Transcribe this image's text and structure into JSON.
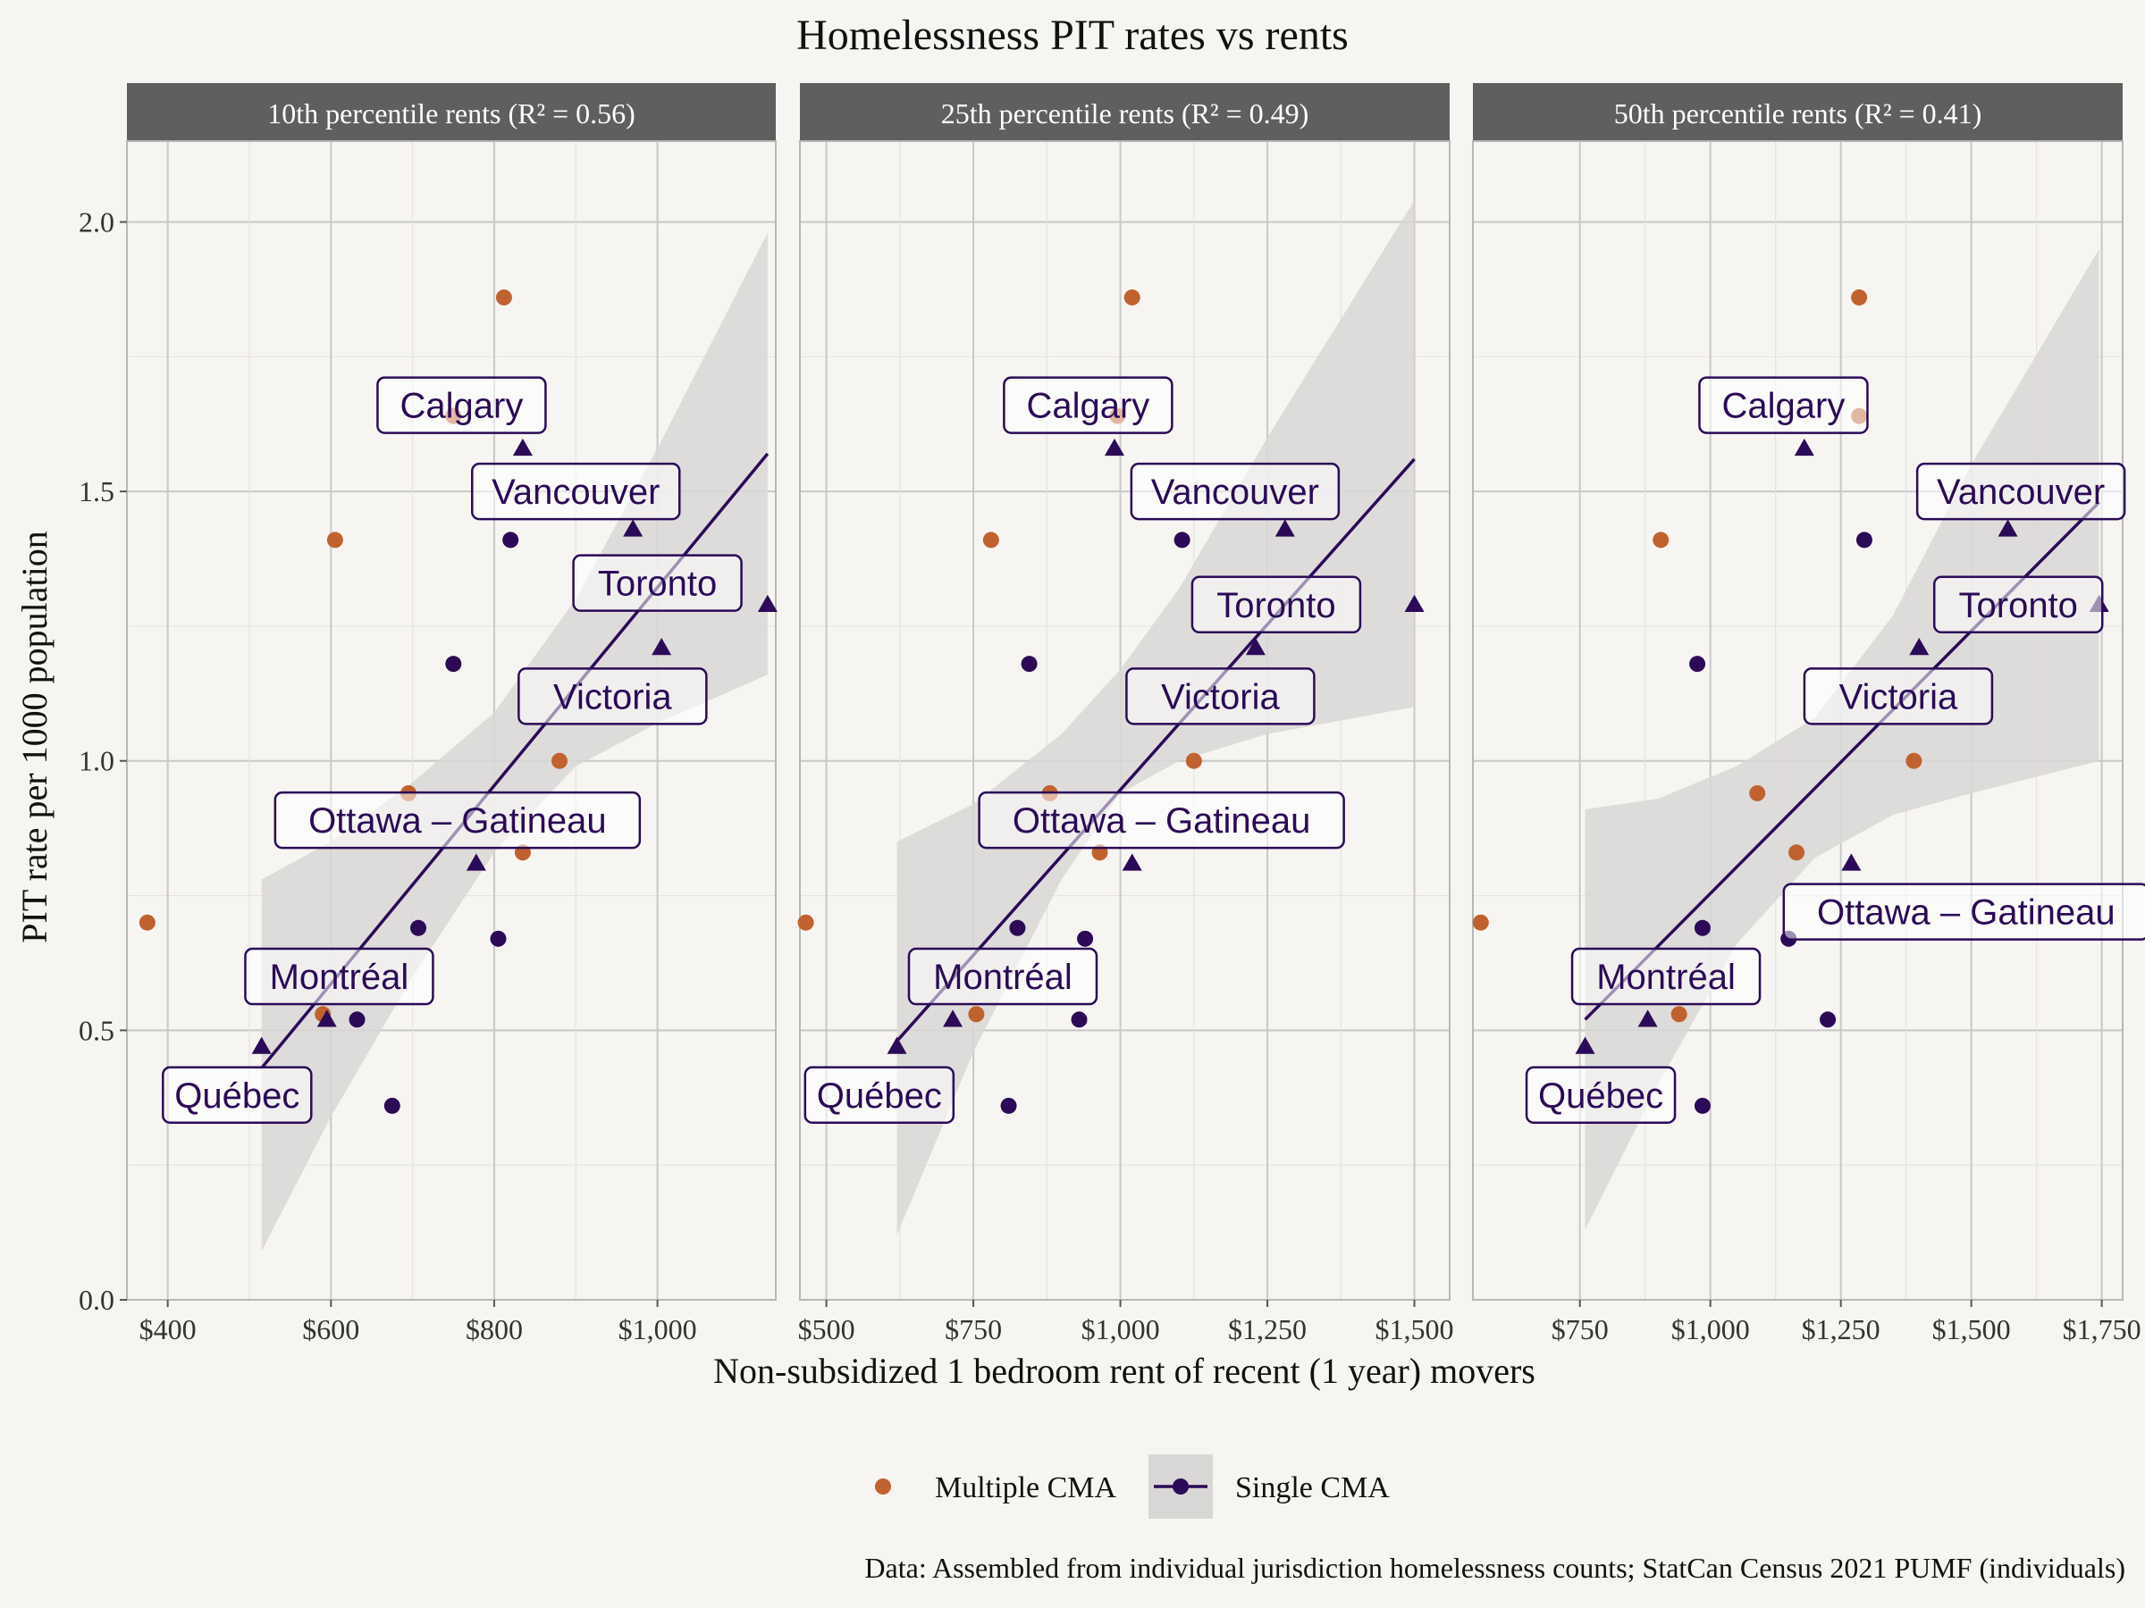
{
  "chart_data": {
    "type": "scatter",
    "title": "Homelessness PIT rates vs rents",
    "xlabel": "Non-subsidized 1 bedroom rent of recent (1 year) movers",
    "ylabel": "PIT rate per 1000 population",
    "caption": "Data: Assembled from individual jurisdiction homelessness counts; StatCan Census 2021 PUMF (individuals)",
    "colors": {
      "multiple": "#c0622f",
      "single": "#2b0a57",
      "band": "#d9d7d6",
      "strip": "#5f5f5f"
    },
    "legend": {
      "placement": "bottom",
      "items": [
        {
          "key": "multiple",
          "label": "Multiple CMA"
        },
        {
          "key": "single",
          "label": "Single CMA"
        }
      ]
    },
    "ylim": [
      0,
      2.15
    ],
    "yticks": [
      0.0,
      0.5,
      1.0,
      1.5,
      2.0
    ],
    "ytick_labels": [
      "0.0",
      "0.5",
      "1.0",
      "1.5",
      "2.0"
    ],
    "panels": [
      {
        "strip": "10th percentile rents (R² = 0.56)",
        "xlim": [
          350,
          1145
        ],
        "xticks": [
          400,
          600,
          800,
          1000
        ],
        "xtick_labels": [
          "$400",
          "$600",
          "$800",
          "$1,000"
        ],
        "fit": {
          "x": [
            515,
            1135
          ],
          "y": [
            0.43,
            1.57
          ]
        },
        "band_upper": [
          [
            515,
            0.78
          ],
          [
            600,
            0.85
          ],
          [
            700,
            0.96
          ],
          [
            800,
            1.09
          ],
          [
            900,
            1.3
          ],
          [
            1000,
            1.58
          ],
          [
            1135,
            1.98
          ]
        ],
        "band_lower": [
          [
            515,
            0.09
          ],
          [
            600,
            0.34
          ],
          [
            700,
            0.6
          ],
          [
            800,
            0.83
          ],
          [
            900,
            0.99
          ],
          [
            1000,
            1.07
          ],
          [
            1135,
            1.16
          ]
        ],
        "points": [
          {
            "x": 375,
            "y": 0.7,
            "g": "multiple"
          },
          {
            "x": 605,
            "y": 1.41,
            "g": "multiple"
          },
          {
            "x": 590,
            "y": 0.53,
            "g": "multiple"
          },
          {
            "x": 695,
            "y": 0.94,
            "g": "multiple"
          },
          {
            "x": 750,
            "y": 1.64,
            "g": "multiple"
          },
          {
            "x": 812,
            "y": 1.86,
            "g": "multiple"
          },
          {
            "x": 835,
            "y": 0.83,
            "g": "multiple"
          },
          {
            "x": 880,
            "y": 1.0,
            "g": "multiple"
          },
          {
            "x": 750,
            "y": 1.18,
            "g": "single-dot"
          },
          {
            "x": 820,
            "y": 1.41,
            "g": "single-dot"
          },
          {
            "x": 707,
            "y": 0.69,
            "g": "single-dot"
          },
          {
            "x": 632,
            "y": 0.52,
            "g": "single-dot"
          },
          {
            "x": 675,
            "y": 0.36,
            "g": "single-dot"
          },
          {
            "x": 805,
            "y": 0.67,
            "g": "single-dot"
          },
          {
            "x": 515,
            "y": 0.47,
            "g": "single-tri"
          },
          {
            "x": 595,
            "y": 0.52,
            "g": "single-tri"
          },
          {
            "x": 778,
            "y": 0.81,
            "g": "single-tri"
          },
          {
            "x": 835,
            "y": 1.58,
            "g": "single-tri"
          },
          {
            "x": 970,
            "y": 1.43,
            "g": "single-tri"
          },
          {
            "x": 1005,
            "y": 1.21,
            "g": "single-tri"
          },
          {
            "x": 1135,
            "y": 1.29,
            "g": "single-tri"
          }
        ],
        "labels": [
          {
            "text": "Calgary",
            "x": 760,
            "y": 1.66
          },
          {
            "text": "Vancouver",
            "x": 900,
            "y": 1.5
          },
          {
            "text": "Toronto",
            "x": 1000,
            "y": 1.33
          },
          {
            "text": "Victoria",
            "x": 945,
            "y": 1.12
          },
          {
            "text": "Ottawa – Gatineau",
            "x": 755,
            "y": 0.89
          },
          {
            "text": "Montréal",
            "x": 610,
            "y": 0.6
          },
          {
            "text": "Québec",
            "x": 485,
            "y": 0.38
          }
        ]
      },
      {
        "strip": "25th percentile rents (R² = 0.49)",
        "xlim": [
          455,
          1560
        ],
        "xticks": [
          500,
          750,
          1000,
          1250,
          1500
        ],
        "xtick_labels": [
          "$500",
          "$750",
          "$1,000",
          "$1,250",
          "$1,500"
        ],
        "fit": {
          "x": [
            620,
            1500
          ],
          "y": [
            0.48,
            1.56
          ]
        },
        "band_upper": [
          [
            620,
            0.85
          ],
          [
            750,
            0.92
          ],
          [
            900,
            1.05
          ],
          [
            1000,
            1.17
          ],
          [
            1100,
            1.32
          ],
          [
            1250,
            1.6
          ],
          [
            1500,
            2.04
          ]
        ],
        "band_lower": [
          [
            620,
            0.12
          ],
          [
            750,
            0.46
          ],
          [
            900,
            0.78
          ],
          [
            1000,
            0.94
          ],
          [
            1100,
            1.0
          ],
          [
            1250,
            1.05
          ],
          [
            1500,
            1.1
          ]
        ],
        "points": [
          {
            "x": 465,
            "y": 0.7,
            "g": "multiple"
          },
          {
            "x": 780,
            "y": 1.41,
            "g": "multiple"
          },
          {
            "x": 755,
            "y": 0.53,
            "g": "multiple"
          },
          {
            "x": 880,
            "y": 0.94,
            "g": "multiple"
          },
          {
            "x": 995,
            "y": 1.64,
            "g": "multiple"
          },
          {
            "x": 1020,
            "y": 1.86,
            "g": "multiple"
          },
          {
            "x": 965,
            "y": 0.83,
            "g": "multiple"
          },
          {
            "x": 1125,
            "y": 1.0,
            "g": "multiple"
          },
          {
            "x": 845,
            "y": 1.18,
            "g": "single-dot"
          },
          {
            "x": 1105,
            "y": 1.41,
            "g": "single-dot"
          },
          {
            "x": 825,
            "y": 0.69,
            "g": "single-dot"
          },
          {
            "x": 930,
            "y": 0.52,
            "g": "single-dot"
          },
          {
            "x": 810,
            "y": 0.36,
            "g": "single-dot"
          },
          {
            "x": 940,
            "y": 0.67,
            "g": "single-dot"
          },
          {
            "x": 620,
            "y": 0.47,
            "g": "single-tri"
          },
          {
            "x": 715,
            "y": 0.52,
            "g": "single-tri"
          },
          {
            "x": 1020,
            "y": 0.81,
            "g": "single-tri"
          },
          {
            "x": 990,
            "y": 1.58,
            "g": "single-tri"
          },
          {
            "x": 1280,
            "y": 1.43,
            "g": "single-tri"
          },
          {
            "x": 1230,
            "y": 1.21,
            "g": "single-tri"
          },
          {
            "x": 1500,
            "y": 1.29,
            "g": "single-tri"
          }
        ],
        "labels": [
          {
            "text": "Calgary",
            "x": 945,
            "y": 1.66
          },
          {
            "text": "Vancouver",
            "x": 1195,
            "y": 1.5
          },
          {
            "text": "Toronto",
            "x": 1265,
            "y": 1.29
          },
          {
            "text": "Victoria",
            "x": 1170,
            "y": 1.12
          },
          {
            "text": "Ottawa – Gatineau",
            "x": 1070,
            "y": 0.89
          },
          {
            "text": "Montréal",
            "x": 800,
            "y": 0.6
          },
          {
            "text": "Québec",
            "x": 590,
            "y": 0.38
          }
        ]
      },
      {
        "strip": "50th percentile rents (R² = 0.41)",
        "xlim": [
          545,
          1790
        ],
        "xticks": [
          750,
          1000,
          1250,
          1500,
          1750
        ],
        "xtick_labels": [
          "$750",
          "$1,000",
          "$1,250",
          "$1,500",
          "$1,750"
        ],
        "fit": {
          "x": [
            760,
            1745
          ],
          "y": [
            0.52,
            1.48
          ]
        },
        "band_upper": [
          [
            760,
            0.91
          ],
          [
            900,
            0.93
          ],
          [
            1050,
            0.99
          ],
          [
            1200,
            1.08
          ],
          [
            1350,
            1.27
          ],
          [
            1500,
            1.55
          ],
          [
            1745,
            1.95
          ]
        ],
        "band_lower": [
          [
            760,
            0.13
          ],
          [
            900,
            0.4
          ],
          [
            1050,
            0.66
          ],
          [
            1200,
            0.82
          ],
          [
            1350,
            0.9
          ],
          [
            1500,
            0.94
          ],
          [
            1745,
            1.0
          ]
        ],
        "points": [
          {
            "x": 560,
            "y": 0.7,
            "g": "multiple"
          },
          {
            "x": 905,
            "y": 1.41,
            "g": "multiple"
          },
          {
            "x": 940,
            "y": 0.53,
            "g": "multiple"
          },
          {
            "x": 1090,
            "y": 0.94,
            "g": "multiple"
          },
          {
            "x": 1285,
            "y": 1.64,
            "g": "multiple"
          },
          {
            "x": 1285,
            "y": 1.86,
            "g": "multiple"
          },
          {
            "x": 1165,
            "y": 0.83,
            "g": "multiple"
          },
          {
            "x": 1390,
            "y": 1.0,
            "g": "multiple"
          },
          {
            "x": 975,
            "y": 1.18,
            "g": "single-dot"
          },
          {
            "x": 1295,
            "y": 1.41,
            "g": "single-dot"
          },
          {
            "x": 985,
            "y": 0.69,
            "g": "single-dot"
          },
          {
            "x": 1225,
            "y": 0.52,
            "g": "single-dot"
          },
          {
            "x": 985,
            "y": 0.36,
            "g": "single-dot"
          },
          {
            "x": 1150,
            "y": 0.67,
            "g": "single-dot"
          },
          {
            "x": 760,
            "y": 0.47,
            "g": "single-tri"
          },
          {
            "x": 880,
            "y": 0.52,
            "g": "single-tri"
          },
          {
            "x": 1270,
            "y": 0.81,
            "g": "single-tri"
          },
          {
            "x": 1180,
            "y": 1.58,
            "g": "single-tri"
          },
          {
            "x": 1570,
            "y": 1.43,
            "g": "single-tri"
          },
          {
            "x": 1400,
            "y": 1.21,
            "g": "single-tri"
          },
          {
            "x": 1745,
            "y": 1.29,
            "g": "single-tri"
          }
        ],
        "labels": [
          {
            "text": "Calgary",
            "x": 1140,
            "y": 1.66
          },
          {
            "text": "Vancouver",
            "x": 1595,
            "y": 1.5
          },
          {
            "text": "Toronto",
            "x": 1590,
            "y": 1.29
          },
          {
            "text": "Victoria",
            "x": 1360,
            "y": 1.12
          },
          {
            "text": "Ottawa – Gatineau",
            "x": 1490,
            "y": 0.72
          },
          {
            "text": "Montréal",
            "x": 915,
            "y": 0.6
          },
          {
            "text": "Québec",
            "x": 790,
            "y": 0.38
          }
        ]
      }
    ]
  }
}
